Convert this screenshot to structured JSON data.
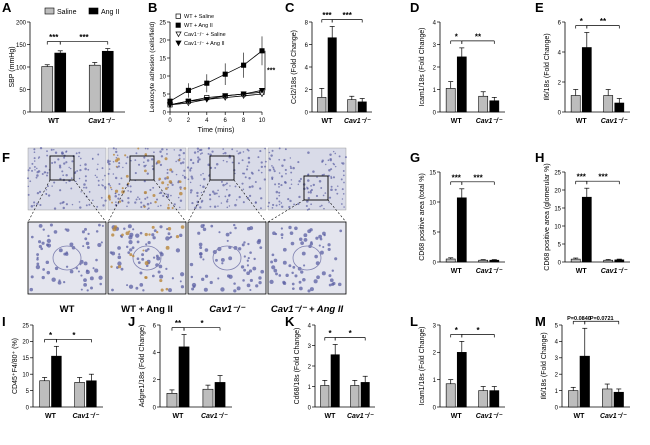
{
  "figure": {
    "panel_letters": [
      "A",
      "B",
      "C",
      "D",
      "E",
      "F",
      "G",
      "H",
      "I",
      "J",
      "K",
      "L",
      "M"
    ],
    "colors": {
      "saline": "#bdbdbd",
      "angii": "#000000",
      "histo_bg": "#d9dbe8",
      "nuclei": "#5b5fa3",
      "brown": "#b8863a"
    },
    "histology": {
      "conditions": [
        "WT",
        "WT + Ang II",
        "Cav1⁻/⁻",
        "Cav1⁻/⁻ + Ang II"
      ]
    }
  },
  "chart_data": [
    {
      "panel": "A",
      "type": "bar",
      "ylabel": "SBP (mmHg)",
      "ylim": [
        0,
        200
      ],
      "yticks": [
        0,
        50,
        100,
        150,
        200
      ],
      "categories": [
        "WT",
        "Cav1⁻/⁻"
      ],
      "legend": [
        "Saline",
        "Ang II"
      ],
      "series": [
        {
          "name": "Saline",
          "values": [
            101,
            104
          ],
          "errors": [
            4,
            6
          ]
        },
        {
          "name": "Ang II",
          "values": [
            131,
            135
          ],
          "errors": [
            5,
            6
          ]
        }
      ],
      "significance": [
        "***",
        "***"
      ]
    },
    {
      "panel": "B",
      "type": "line",
      "ylabel": "Leukocyte adhesion (cells/field)",
      "xlabel": "Time (mins)",
      "xlim": [
        0,
        10
      ],
      "xticks": [
        0,
        2,
        4,
        6,
        8,
        10
      ],
      "ylim": [
        0,
        25
      ],
      "yticks": [
        0,
        5,
        10,
        15,
        20,
        25
      ],
      "x": [
        0,
        2,
        4,
        6,
        8,
        10
      ],
      "series": [
        {
          "name": "WT + Saline",
          "values": [
            2,
            3,
            4,
            4.5,
            5,
            5.5
          ]
        },
        {
          "name": "WT + Ang II",
          "values": [
            3,
            6,
            8,
            10.5,
            13,
            17
          ]
        },
        {
          "name": "Cav1⁻/⁻ + Saline",
          "values": [
            2,
            2.5,
            3.5,
            4,
            4.5,
            5
          ]
        },
        {
          "name": "Cav1⁻/⁻ + Ang II",
          "values": [
            2,
            3,
            3.5,
            4.5,
            5,
            6
          ]
        }
      ],
      "significance": [
        "***"
      ]
    },
    {
      "panel": "C",
      "type": "bar",
      "ylabel": "Ccl2/18s (Fold Change)",
      "ylim": [
        0,
        8
      ],
      "yticks": [
        0,
        2,
        4,
        6,
        8
      ],
      "categories": [
        "WT",
        "Cav1⁻/⁻"
      ],
      "series": [
        {
          "name": "Saline",
          "values": [
            1.3,
            1.1
          ],
          "errors": [
            0.8,
            0.3
          ]
        },
        {
          "name": "Ang II",
          "values": [
            6.6,
            0.9
          ],
          "errors": [
            1.0,
            0.3
          ]
        }
      ],
      "significance": [
        "***",
        "***"
      ]
    },
    {
      "panel": "D",
      "type": "bar",
      "ylabel": "Icam1/18s (Fold Change)",
      "ylim": [
        0,
        4
      ],
      "yticks": [
        0,
        1,
        2,
        3,
        4
      ],
      "categories": [
        "WT",
        "Cav1⁻/⁻"
      ],
      "series": [
        {
          "name": "Saline",
          "values": [
            1.05,
            0.7
          ],
          "errors": [
            0.3,
            0.2
          ]
        },
        {
          "name": "Ang II",
          "values": [
            2.45,
            0.5
          ],
          "errors": [
            0.4,
            0.15
          ]
        }
      ],
      "significance": [
        "*",
        "**"
      ]
    },
    {
      "panel": "E",
      "type": "bar",
      "ylabel": "Il6/18s (Fold Change)",
      "ylim": [
        0,
        6
      ],
      "yticks": [
        0,
        2,
        4,
        6
      ],
      "categories": [
        "WT",
        "Cav1⁻/⁻"
      ],
      "series": [
        {
          "name": "Saline",
          "values": [
            1.1,
            1.1
          ],
          "errors": [
            0.4,
            0.4
          ]
        },
        {
          "name": "Ang II",
          "values": [
            4.3,
            0.6
          ],
          "errors": [
            1.0,
            0.3
          ]
        }
      ],
      "significance": [
        "*",
        "**"
      ]
    },
    {
      "panel": "G",
      "type": "bar",
      "ylabel": "CD68 positive area (total %)",
      "ylim": [
        0,
        15
      ],
      "yticks": [
        0,
        5,
        10,
        15
      ],
      "categories": [
        "WT",
        "Cav1⁻/⁻"
      ],
      "series": [
        {
          "name": "Saline",
          "values": [
            0.5,
            0.3
          ],
          "errors": [
            0.2,
            0.1
          ]
        },
        {
          "name": "Ang II",
          "values": [
            10.7,
            0.3
          ],
          "errors": [
            1.5,
            0.1
          ]
        }
      ],
      "significance": [
        "***",
        "***"
      ]
    },
    {
      "panel": "H",
      "type": "bar",
      "ylabel": "CD68 positive area (glomerular %)",
      "ylim": [
        0,
        25
      ],
      "yticks": [
        0,
        5,
        10,
        15,
        20,
        25
      ],
      "categories": [
        "WT",
        "Cav1⁻/⁻"
      ],
      "series": [
        {
          "name": "Saline",
          "values": [
            0.8,
            0.5
          ],
          "errors": [
            0.3,
            0.2
          ]
        },
        {
          "name": "Ang II",
          "values": [
            18.0,
            0.6
          ],
          "errors": [
            2.5,
            0.2
          ]
        }
      ],
      "significance": [
        "***",
        "***"
      ]
    },
    {
      "panel": "I",
      "type": "bar",
      "ylabel": "CD45⁺F4/80⁺ (%)",
      "ylim": [
        0,
        25
      ],
      "yticks": [
        0,
        5,
        10,
        15,
        20,
        25
      ],
      "categories": [
        "WT",
        "Cav1⁻/⁻"
      ],
      "series": [
        {
          "name": "Saline",
          "values": [
            8,
            7.5
          ],
          "errors": [
            1,
            1.5
          ]
        },
        {
          "name": "Ang II",
          "values": [
            15.5,
            8
          ],
          "errors": [
            3,
            2
          ]
        }
      ],
      "significance": [
        "*",
        "*"
      ]
    },
    {
      "panel": "J",
      "type": "bar",
      "ylabel": "Adgre1/18s (Fold Change)",
      "ylim": [
        0,
        6
      ],
      "yticks": [
        0,
        2,
        4,
        6
      ],
      "categories": [
        "WT",
        "Cav1⁻/⁻"
      ],
      "series": [
        {
          "name": "Saline",
          "values": [
            1.0,
            1.3
          ],
          "errors": [
            0.25,
            0.3
          ]
        },
        {
          "name": "Ang II",
          "values": [
            4.4,
            1.8
          ],
          "errors": [
            0.9,
            0.5
          ]
        }
      ],
      "significance": [
        "**",
        "*"
      ]
    },
    {
      "panel": "K",
      "type": "bar",
      "ylabel": "Cd68/18s (Fold Change)",
      "ylim": [
        0,
        4
      ],
      "yticks": [
        0,
        1,
        2,
        3,
        4
      ],
      "categories": [
        "WT",
        "Cav1⁻/⁻"
      ],
      "series": [
        {
          "name": "Saline",
          "values": [
            1.05,
            1.05
          ],
          "errors": [
            0.25,
            0.25
          ]
        },
        {
          "name": "Ang II",
          "values": [
            2.55,
            1.2
          ],
          "errors": [
            0.5,
            0.3
          ]
        }
      ],
      "significance": [
        "*",
        "*"
      ]
    },
    {
      "panel": "L",
      "type": "bar",
      "ylabel": "Icam1/18s (Fold Change)",
      "ylim": [
        0,
        3
      ],
      "yticks": [
        0,
        1,
        2,
        3
      ],
      "categories": [
        "WT",
        "Cav1⁻/⁻"
      ],
      "series": [
        {
          "name": "Saline",
          "values": [
            0.85,
            0.6
          ],
          "errors": [
            0.15,
            0.15
          ]
        },
        {
          "name": "Ang II",
          "values": [
            2.0,
            0.6
          ],
          "errors": [
            0.4,
            0.15
          ]
        }
      ],
      "significance": [
        "*",
        "*"
      ]
    },
    {
      "panel": "M",
      "type": "bar",
      "ylabel": "Il6/18s (Fold Change)",
      "ylim": [
        0,
        5
      ],
      "yticks": [
        0,
        1,
        2,
        3,
        4,
        5
      ],
      "categories": [
        "WT",
        "Cav1⁻/⁻"
      ],
      "series": [
        {
          "name": "Saline",
          "values": [
            1.0,
            1.1
          ],
          "errors": [
            0.2,
            0.3
          ]
        },
        {
          "name": "Ang II",
          "values": [
            3.1,
            0.9
          ],
          "errors": [
            1.7,
            0.2
          ]
        }
      ],
      "significance": [
        "P=0.0840",
        "P=0.0721"
      ]
    }
  ]
}
